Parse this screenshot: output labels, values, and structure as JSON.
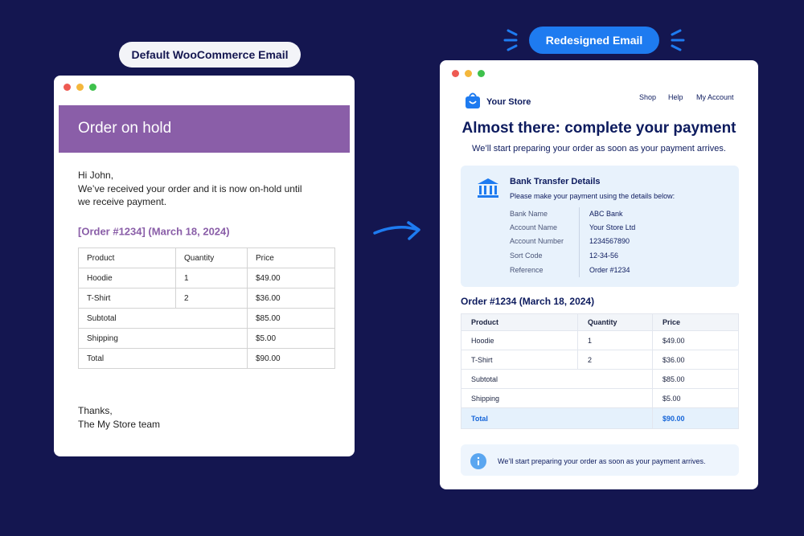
{
  "left": {
    "badge": "Default WooCommerce Email",
    "header": "Order on hold",
    "greeting": "Hi John,",
    "body": "We’ve received your order and it is now on-hold until we receive payment.",
    "order_title": "[Order #1234] (March 18, 2024)",
    "table": {
      "columns": [
        "Product",
        "Quantity",
        "Price"
      ],
      "rows": [
        [
          "Hoodie",
          "1",
          "$49.00"
        ],
        [
          "T-Shirt",
          "2",
          "$36.00"
        ]
      ],
      "totals": [
        [
          "Subtotal",
          "$85.00"
        ],
        [
          "Shipping",
          "$5.00"
        ],
        [
          "Total",
          "$90.00"
        ]
      ]
    },
    "closing": [
      "Thanks,",
      "The My Store team"
    ]
  },
  "right": {
    "badge": "Redesigned Email",
    "brand": "Your Store",
    "nav": [
      "Shop",
      "Help",
      "My Account"
    ],
    "heading": "Almost there: complete your payment",
    "subheading": "We’ll start preparing your order as soon as your payment arrives.",
    "bank": {
      "title": "Bank Transfer Details",
      "intro": "Please make your payment using the details below:",
      "rows": [
        [
          "Bank Name",
          "ABC Bank"
        ],
        [
          "Account Name",
          "Your Store Ltd"
        ],
        [
          "Account Number",
          "1234567890"
        ],
        [
          "Sort Code",
          "12-34-56"
        ],
        [
          "Reference",
          "Order #1234"
        ]
      ]
    },
    "order_title": "Order #1234 (March 18, 2024)",
    "table": {
      "columns": [
        "Product",
        "Quantity",
        "Price"
      ],
      "rows": [
        [
          "Hoodie",
          "1",
          "$49.00"
        ],
        [
          "T-Shirt",
          "2",
          "$36.00"
        ]
      ],
      "totals": [
        [
          "Subtotal",
          "$85.00"
        ],
        [
          "Shipping",
          "$5.00"
        ],
        [
          "Total",
          "$90.00"
        ]
      ]
    },
    "note": "We’ll start preparing your order as soon as your payment arrives."
  }
}
